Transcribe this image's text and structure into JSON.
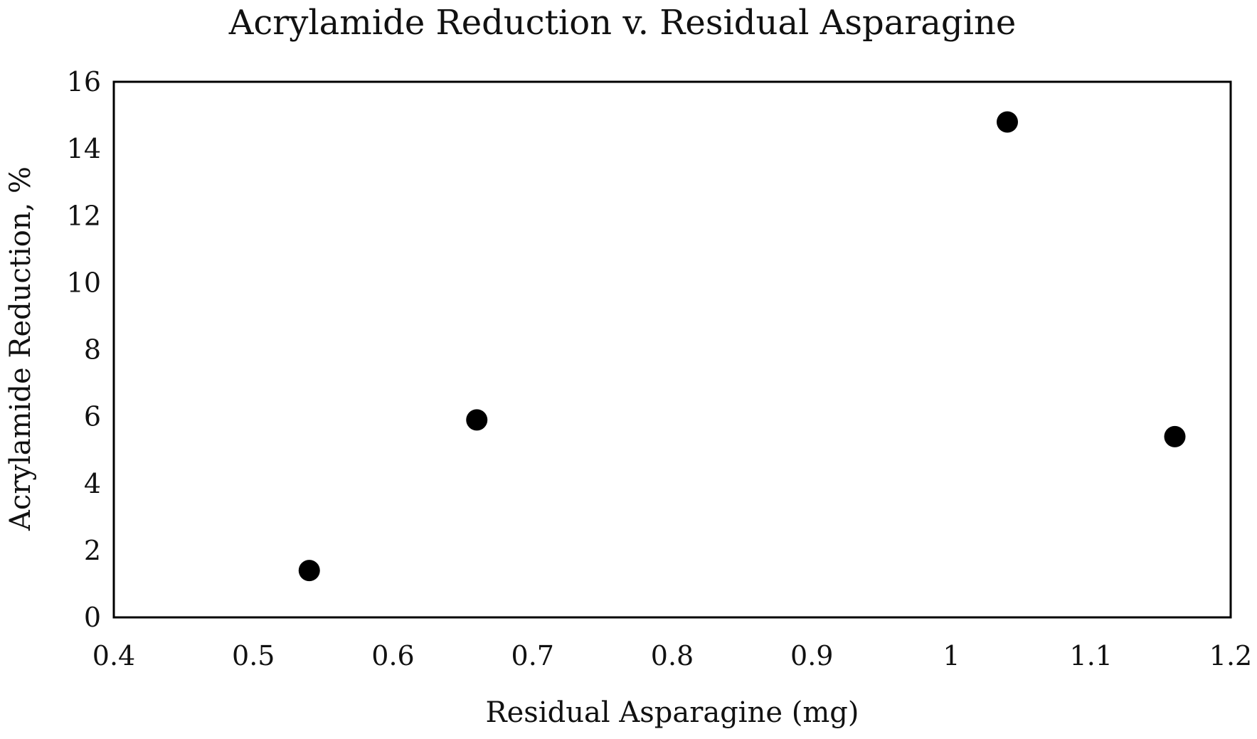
{
  "chart_data": {
    "type": "scatter",
    "title": "Acrylamide Reduction v. Residual Asparagine",
    "xlabel": "Residual Asparagine (mg)",
    "ylabel": "Acrylamide Reduction, %",
    "xlim": [
      0.4,
      1.2
    ],
    "ylim": [
      0,
      16
    ],
    "xticks": [
      "0.4",
      "0.5",
      "0.6",
      "0.7",
      "0.8",
      "0.9",
      "1",
      "1.1",
      "1.2"
    ],
    "yticks": [
      "0",
      "2",
      "4",
      "6",
      "8",
      "10",
      "12",
      "14",
      "16"
    ],
    "grid": false,
    "marker_color": "#000000",
    "points": [
      {
        "x": 0.54,
        "y": 1.4
      },
      {
        "x": 0.66,
        "y": 5.9
      },
      {
        "x": 1.04,
        "y": 14.8
      },
      {
        "x": 1.16,
        "y": 5.4
      }
    ]
  }
}
